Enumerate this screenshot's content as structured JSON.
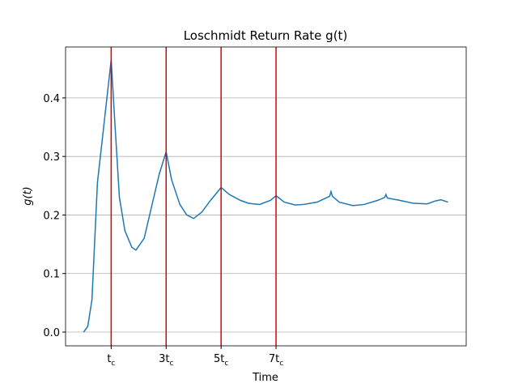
{
  "chart_data": {
    "type": "line",
    "title": "Loschmidt Return Rate g(t)",
    "x_label": "Time",
    "y_label": "g(t)",
    "x": [
      0,
      0.15,
      0.3,
      0.5,
      0.75,
      1.0,
      1.15,
      1.3,
      1.5,
      1.75,
      1.9,
      2.2,
      2.5,
      2.75,
      3.0,
      3.2,
      3.5,
      3.75,
      4.0,
      4.3,
      4.6,
      5.0,
      5.3,
      5.7,
      6.0,
      6.4,
      6.8,
      7.0,
      7.3,
      7.7,
      8.0,
      8.5,
      8.95,
      9.0,
      9.05,
      9.3,
      9.8,
      10.2,
      10.7,
      10.95,
      11.0,
      11.05,
      11.5,
      12.0,
      12.5,
      12.8,
      13.0,
      13.26
    ],
    "series": [
      {
        "name": "g(t)",
        "color": "#1f77b4",
        "values": [
          0.0,
          0.01,
          0.055,
          0.255,
          0.36,
          0.465,
          0.345,
          0.23,
          0.173,
          0.145,
          0.14,
          0.16,
          0.22,
          0.27,
          0.308,
          0.26,
          0.218,
          0.2,
          0.194,
          0.205,
          0.224,
          0.247,
          0.235,
          0.225,
          0.22,
          0.218,
          0.225,
          0.233,
          0.222,
          0.217,
          0.218,
          0.222,
          0.232,
          0.24,
          0.232,
          0.222,
          0.216,
          0.218,
          0.225,
          0.23,
          0.235,
          0.229,
          0.225,
          0.22,
          0.219,
          0.224,
          0.226,
          0.222
        ]
      }
    ],
    "vlines": [
      1,
      3,
      5,
      7
    ],
    "vline_color": "#e00000",
    "xlim": [
      -0.66,
      13.92
    ],
    "ylim": [
      -0.0235,
      0.487
    ],
    "xticks": [
      {
        "value": 1,
        "label": "t_c"
      },
      {
        "value": 3,
        "label": "3t_c"
      },
      {
        "value": 5,
        "label": "5t_c"
      },
      {
        "value": 7,
        "label": "7t_c"
      }
    ],
    "yticks": [
      0.0,
      0.1,
      0.2,
      0.3,
      0.4
    ],
    "ytick_labels": [
      "0.0",
      "0.1",
      "0.2",
      "0.3",
      "0.4"
    ],
    "grid": "y"
  }
}
